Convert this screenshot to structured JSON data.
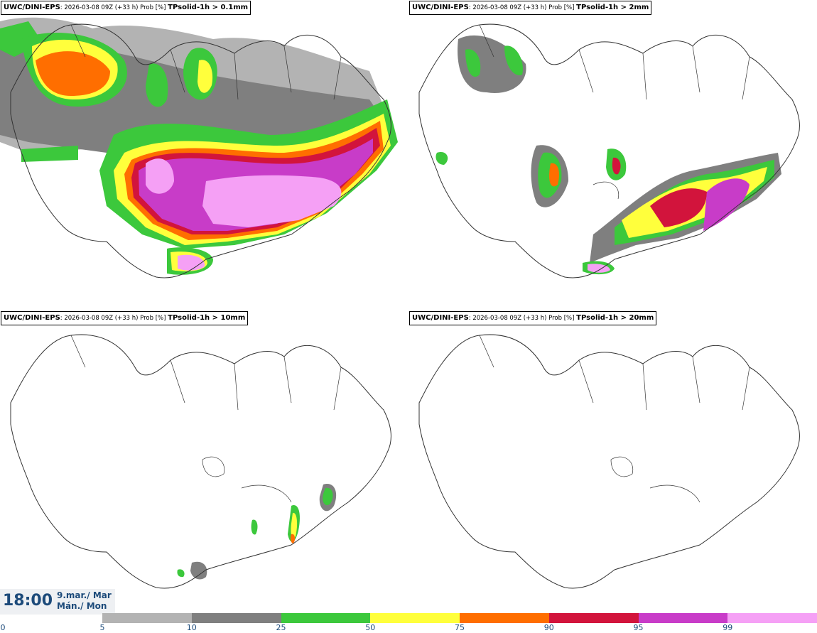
{
  "panels": [
    {
      "model": "UWC/DINI-EPS",
      "meta": ": 2026-03-08 09Z (+33 h) Prob [%] ",
      "field": "TPsolid-1h > 0.1mm"
    },
    {
      "model": "UWC/DINI-EPS",
      "meta": ": 2026-03-08 09Z (+33 h) Prob [%] ",
      "field": "TPsolid-1h > 2mm"
    },
    {
      "model": "UWC/DINI-EPS",
      "meta": ": 2026-03-08 09Z (+33 h) Prob [%] ",
      "field": "TPsolid-1h > 10mm"
    },
    {
      "model": "UWC/DINI-EPS",
      "meta": ": 2026-03-08 09Z (+33 h) Prob [%] ",
      "field": "TPsolid-1h > 20mm"
    }
  ],
  "valid_time": {
    "time": "18:00",
    "date_line1": "9.mar./ Mar",
    "date_line2": "Mán./ Mon"
  },
  "colorbar": {
    "ticks": [
      "0",
      "5",
      "10",
      "25",
      "50",
      "75",
      "90",
      "95",
      "99"
    ],
    "colors": [
      "#ffffff",
      "#b3b3b3",
      "#7f7f7f",
      "#3cc83c",
      "#ffff3c",
      "#ff6e00",
      "#d2143c",
      "#c83cc8",
      "#f5a0f5"
    ]
  }
}
